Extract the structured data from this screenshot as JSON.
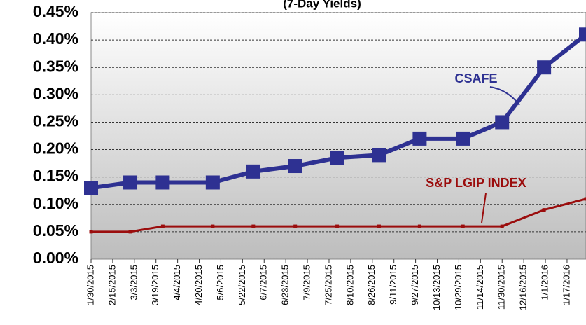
{
  "chart_data": {
    "type": "line",
    "title": "(7-Day Yields)",
    "xlim": [
      0,
      366
    ],
    "xticks": [
      {
        "value": 0,
        "label": "1/30/2015"
      },
      {
        "value": 16,
        "label": "2/15/2015"
      },
      {
        "value": 32,
        "label": "3/3/2015"
      },
      {
        "value": 48,
        "label": "3/19/2015"
      },
      {
        "value": 64,
        "label": "4/4/2015"
      },
      {
        "value": 80,
        "label": "4/20/2015"
      },
      {
        "value": 96,
        "label": "5/6/2015"
      },
      {
        "value": 112,
        "label": "5/22/2015"
      },
      {
        "value": 128,
        "label": "6/7/2015"
      },
      {
        "value": 144,
        "label": "6/23/2015"
      },
      {
        "value": 160,
        "label": "7/9/2015"
      },
      {
        "value": 176,
        "label": "7/25/2015"
      },
      {
        "value": 192,
        "label": "8/10/2015"
      },
      {
        "value": 208,
        "label": "8/26/2015"
      },
      {
        "value": 224,
        "label": "9/11/2015"
      },
      {
        "value": 240,
        "label": "9/27/2015"
      },
      {
        "value": 256,
        "label": "10/13/2015"
      },
      {
        "value": 272,
        "label": "10/29/2015"
      },
      {
        "value": 288,
        "label": "11/14/2015"
      },
      {
        "value": 304,
        "label": "11/30/2015"
      },
      {
        "value": 320,
        "label": "12/16/2015"
      },
      {
        "value": 336,
        "label": "1/1/2016"
      },
      {
        "value": 352,
        "label": "1/17/2016"
      }
    ],
    "ylim": [
      0,
      0.45
    ],
    "yticks": [
      {
        "value": 0,
        "label": "0.00%"
      },
      {
        "value": 0.05,
        "label": "0.05%"
      },
      {
        "value": 0.1,
        "label": "0.10%"
      },
      {
        "value": 0.15,
        "label": "0.15%"
      },
      {
        "value": 0.2,
        "label": "0.20%"
      },
      {
        "value": 0.25,
        "label": "0.25%"
      },
      {
        "value": 0.3,
        "label": "0.30%"
      },
      {
        "value": 0.35,
        "label": "0.35%"
      },
      {
        "value": 0.4,
        "label": "0.40%"
      },
      {
        "value": 0.45,
        "label": "0.45%"
      }
    ],
    "grid": true,
    "x": [
      0,
      29,
      53,
      90,
      120,
      151,
      182,
      213,
      243,
      275,
      304,
      335,
      366
    ],
    "series": [
      {
        "name": "CSAFE",
        "color": "#2e3192",
        "values": [
          0.13,
          0.14,
          0.14,
          0.14,
          0.16,
          0.17,
          0.185,
          0.19,
          0.22,
          0.22,
          0.25,
          0.35,
          0.41
        ]
      },
      {
        "name": "S&P LGIP INDEX",
        "color": "#9b0d0d",
        "values": [
          0.05,
          0.05,
          0.06,
          0.06,
          0.06,
          0.06,
          0.06,
          0.06,
          0.06,
          0.06,
          0.06,
          0.09,
          0.11
        ]
      }
    ]
  }
}
